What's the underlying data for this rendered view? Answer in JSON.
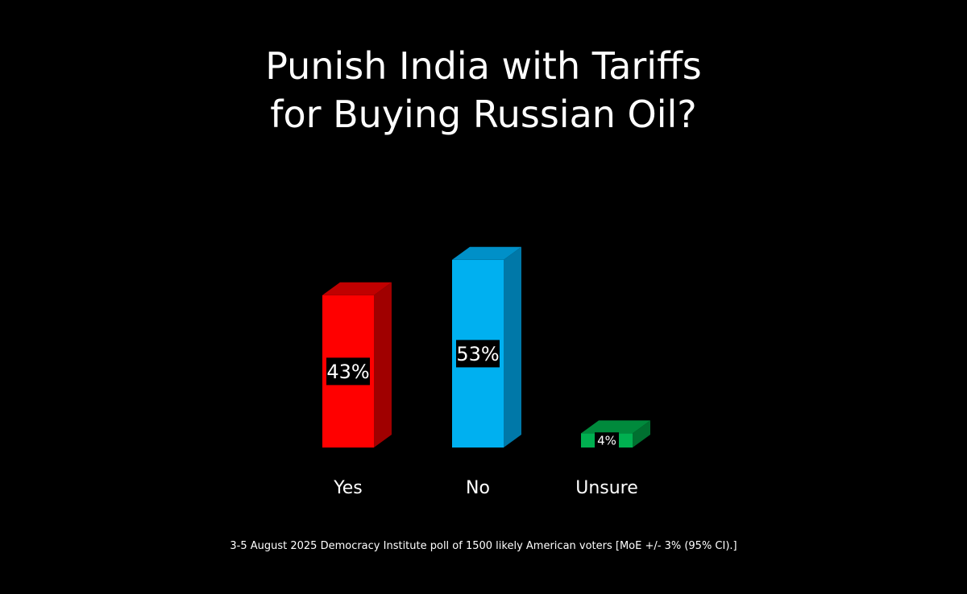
{
  "title_lines": [
    "Punish India with Tariffs",
    "for Buying Russian Oil?"
  ],
  "footnote": "3-5 August 2025 Democracy Institute poll of 1500 likely American voters [MoE +/- 3% (95% CI).]",
  "chart_data": {
    "type": "bar",
    "title": "Punish India with Tariffs for Buying Russian Oil?",
    "categories": [
      "Yes",
      "No",
      "Unsure"
    ],
    "values": [
      43,
      53,
      4
    ],
    "data_labels": [
      "43%",
      "53%",
      "4%"
    ],
    "unit": "%",
    "ylim": [
      0,
      60
    ],
    "grid": false,
    "legend": "none",
    "colors": {
      "front": [
        "#ff0000",
        "#00b0f0",
        "#00b050"
      ],
      "top": [
        "#c00000",
        "#0090c8",
        "#008a3c"
      ],
      "side": [
        "#a00000",
        "#0078a8",
        "#007030"
      ]
    }
  }
}
